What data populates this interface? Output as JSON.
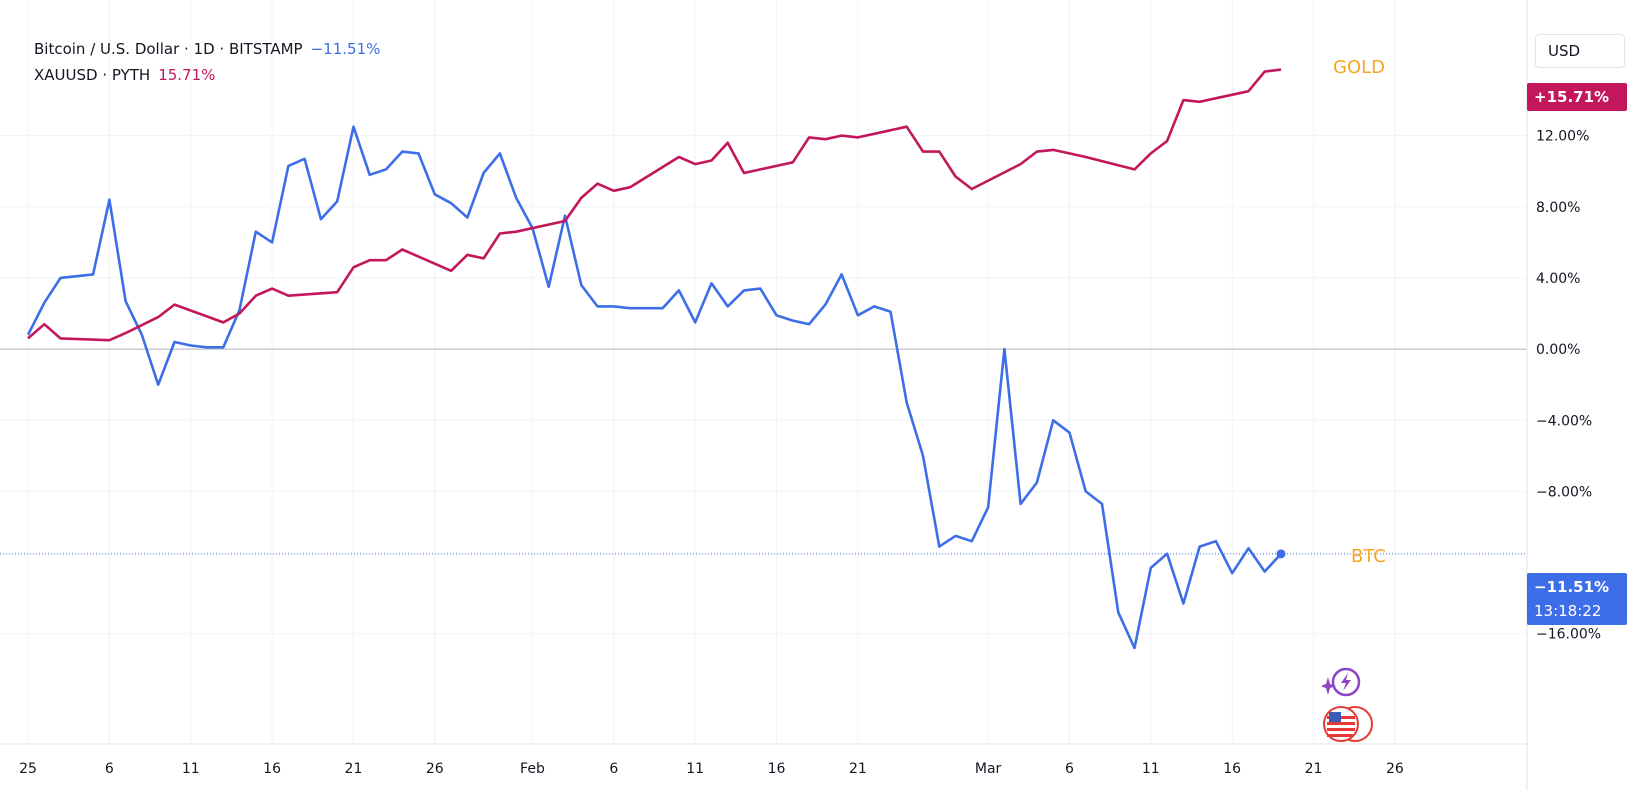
{
  "legend": {
    "btc_title": "Bitcoin / U.S. Dollar · 1D · BITSTAMP",
    "btc_change": "−11.51%",
    "gold_title": "XAUUSD · PYTH",
    "gold_change": "15.71%"
  },
  "currency_button": "USD",
  "price_tags": {
    "gold_value": "+15.71%",
    "btc_value": "−11.51%",
    "btc_countdown": "13:18:22"
  },
  "series_labels": {
    "gold": "GOLD",
    "btc": "BTC"
  },
  "colors": {
    "btc": "#3d6ee8",
    "gold": "#c2185b",
    "label_orange": "#f5a623",
    "grid": "#f0f3fa",
    "zero_line": "#b2b5be"
  },
  "icons": [
    "sparkle-bolt-icon",
    "us-flag-economic-events-icon"
  ],
  "chart_data": {
    "type": "line",
    "xlabel": "",
    "ylabel": "",
    "y_unit": "%",
    "ylim": [
      -20.4,
      18.5
    ],
    "y_ticks": [
      12,
      8,
      4,
      0,
      -4,
      -8,
      -16
    ],
    "y_tick_labels": [
      "12.00%",
      "8.00%",
      "4.00%",
      "0.00%",
      "−4.00%",
      "−8.00%",
      "−16.00%"
    ],
    "x_domain": [
      "2025-01-01",
      "2025-03-30"
    ],
    "x_ticks": [
      {
        "date": "2025-01-01",
        "label": "25"
      },
      {
        "date": "2025-01-06",
        "label": "6"
      },
      {
        "date": "2025-01-11",
        "label": "11"
      },
      {
        "date": "2025-01-16",
        "label": "16"
      },
      {
        "date": "2025-01-21",
        "label": "21"
      },
      {
        "date": "2025-01-26",
        "label": "26"
      },
      {
        "date": "2025-02-01",
        "label": "Feb"
      },
      {
        "date": "2025-02-06",
        "label": "6"
      },
      {
        "date": "2025-02-11",
        "label": "11"
      },
      {
        "date": "2025-02-16",
        "label": "16"
      },
      {
        "date": "2025-02-21",
        "label": "21"
      },
      {
        "date": "2025-03-01",
        "label": "Mar"
      },
      {
        "date": "2025-03-06",
        "label": "6"
      },
      {
        "date": "2025-03-11",
        "label": "11"
      },
      {
        "date": "2025-03-16",
        "label": "16"
      },
      {
        "date": "2025-03-21",
        "label": "21"
      },
      {
        "date": "2025-03-26",
        "label": "26"
      }
    ],
    "grid": true,
    "series": [
      {
        "name": "Bitcoin / U.S. Dollar · 1D · BITSTAMP",
        "color": "#3d6ee8",
        "last_value": -11.51,
        "x": [
          "2025-01-01",
          "2025-01-02",
          "2025-01-03",
          "2025-01-05",
          "2025-01-06",
          "2025-01-07",
          "2025-01-08",
          "2025-01-09",
          "2025-01-10",
          "2025-01-11",
          "2025-01-12",
          "2025-01-13",
          "2025-01-14",
          "2025-01-15",
          "2025-01-16",
          "2025-01-17",
          "2025-01-18",
          "2025-01-19",
          "2025-01-20",
          "2025-01-21",
          "2025-01-22",
          "2025-01-23",
          "2025-01-24",
          "2025-01-25",
          "2025-01-26",
          "2025-01-27",
          "2025-01-28",
          "2025-01-29",
          "2025-01-30",
          "2025-01-31",
          "2025-02-01",
          "2025-02-02",
          "2025-02-03",
          "2025-02-04",
          "2025-02-05",
          "2025-02-06",
          "2025-02-07",
          "2025-02-08",
          "2025-02-09",
          "2025-02-10",
          "2025-02-11",
          "2025-02-12",
          "2025-02-13",
          "2025-02-14",
          "2025-02-15",
          "2025-02-16",
          "2025-02-17",
          "2025-02-18",
          "2025-02-19",
          "2025-02-20",
          "2025-02-21",
          "2025-02-22",
          "2025-02-23",
          "2025-02-24",
          "2025-02-25",
          "2025-02-26",
          "2025-02-27",
          "2025-02-28",
          "2025-03-01",
          "2025-03-02",
          "2025-03-03",
          "2025-03-04",
          "2025-03-05",
          "2025-03-06",
          "2025-03-07",
          "2025-03-08",
          "2025-03-09",
          "2025-03-10",
          "2025-03-11",
          "2025-03-12",
          "2025-03-13",
          "2025-03-14",
          "2025-03-15",
          "2025-03-16",
          "2025-03-17",
          "2025-03-18",
          "2025-03-19"
        ],
        "y": [
          0.8,
          2.6,
          4.0,
          4.2,
          8.4,
          2.7,
          0.8,
          -2.0,
          0.4,
          0.2,
          0.1,
          0.1,
          2.2,
          6.6,
          6.0,
          10.3,
          10.7,
          7.3,
          8.3,
          12.5,
          9.8,
          10.1,
          11.1,
          11.0,
          8.7,
          8.2,
          7.4,
          9.9,
          11.0,
          8.5,
          6.8,
          3.5,
          7.5,
          3.6,
          2.4,
          2.4,
          2.3,
          2.3,
          2.3,
          3.3,
          1.5,
          3.7,
          2.4,
          3.3,
          3.4,
          1.9,
          1.6,
          1.4,
          2.5,
          4.2,
          1.9,
          2.4,
          2.1,
          -3.0,
          -6.0,
          -11.1,
          -10.5,
          -10.8,
          -8.9,
          0.0,
          -8.7,
          -7.5,
          -4.0,
          -4.7,
          -8.0,
          -8.7,
          -14.8,
          -16.8,
          -12.3,
          -11.5,
          -14.3,
          -11.1,
          -10.8,
          -12.6,
          -11.2,
          -12.5,
          -11.51
        ]
      },
      {
        "name": "XAUUSD · PYTH",
        "color": "#c2185b",
        "last_value": 15.71,
        "x": [
          "2025-01-01",
          "2025-01-02",
          "2025-01-03",
          "2025-01-06",
          "2025-01-07",
          "2025-01-09",
          "2025-01-10",
          "2025-01-13",
          "2025-01-14",
          "2025-01-15",
          "2025-01-16",
          "2025-01-17",
          "2025-01-20",
          "2025-01-21",
          "2025-01-22",
          "2025-01-23",
          "2025-01-24",
          "2025-01-27",
          "2025-01-28",
          "2025-01-29",
          "2025-01-30",
          "2025-01-31",
          "2025-02-03",
          "2025-02-04",
          "2025-02-05",
          "2025-02-06",
          "2025-02-07",
          "2025-02-10",
          "2025-02-11",
          "2025-02-12",
          "2025-02-13",
          "2025-02-14",
          "2025-02-17",
          "2025-02-18",
          "2025-02-19",
          "2025-02-20",
          "2025-02-21",
          "2025-02-24",
          "2025-02-25",
          "2025-02-26",
          "2025-02-27",
          "2025-02-28",
          "2025-03-03",
          "2025-03-04",
          "2025-03-05",
          "2025-03-06",
          "2025-03-07",
          "2025-03-10",
          "2025-03-11",
          "2025-03-12",
          "2025-03-13",
          "2025-03-14",
          "2025-03-17",
          "2025-03-18",
          "2025-03-19"
        ],
        "y": [
          0.6,
          1.4,
          0.6,
          0.5,
          0.9,
          1.8,
          2.5,
          1.5,
          2.0,
          3.0,
          3.4,
          3.0,
          3.2,
          4.6,
          5.0,
          5.0,
          5.6,
          4.4,
          5.3,
          5.1,
          6.5,
          6.6,
          7.2,
          8.5,
          9.3,
          8.9,
          9.1,
          10.8,
          10.4,
          10.6,
          11.6,
          9.9,
          10.5,
          11.9,
          11.8,
          12.0,
          11.9,
          12.5,
          11.1,
          11.1,
          9.7,
          9.0,
          10.4,
          11.1,
          11.2,
          11.0,
          10.8,
          10.1,
          11.0,
          11.7,
          14.0,
          13.9,
          14.5,
          15.6,
          15.71
        ]
      }
    ]
  }
}
